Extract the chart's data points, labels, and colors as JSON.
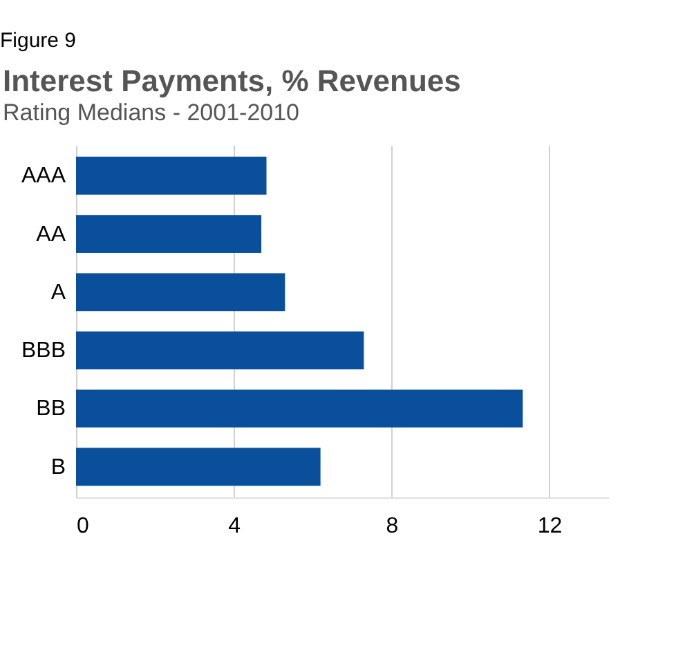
{
  "chart_data": {
    "type": "bar",
    "orientation": "horizontal",
    "title": "Interest Payments, % Revenues",
    "subtitle": "Rating Medians - 2001-2010",
    "annotations": [
      "Figure 9"
    ],
    "categories": [
      "AAA",
      "AA",
      "A",
      "BBB",
      "BB",
      "B"
    ],
    "values": [
      4.83,
      4.7,
      5.3,
      7.3,
      11.33,
      6.2
    ],
    "color": "#0a4f9c",
    "xlim": [
      0,
      13.5
    ],
    "xticks": [
      0,
      4,
      8,
      12
    ],
    "grid": "x"
  }
}
